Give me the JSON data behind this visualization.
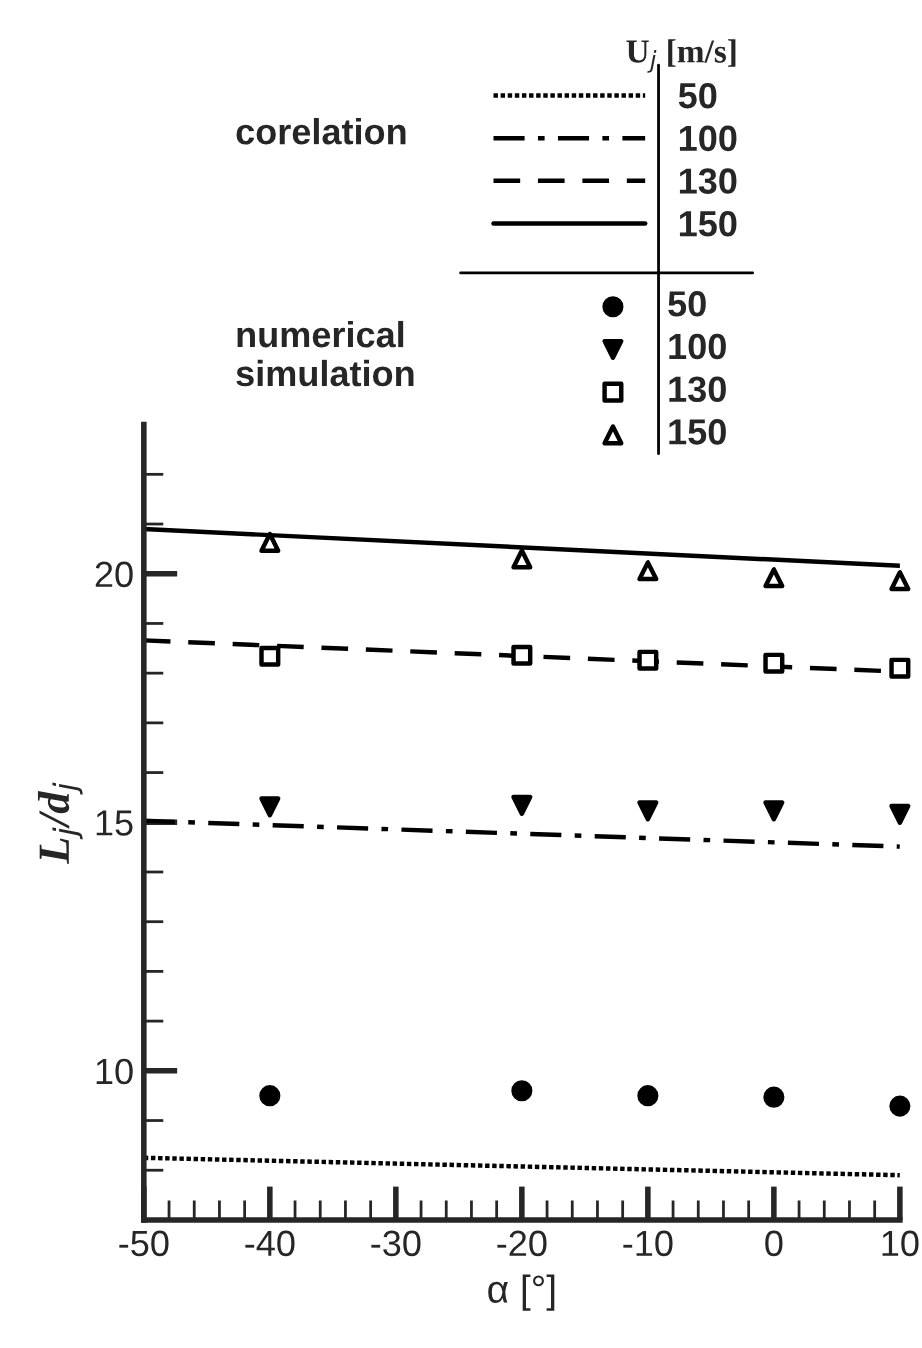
{
  "chart_data": {
    "type": "line",
    "xlabel": "α [°]",
    "ylabel": "L$_{j}$/d$_{j}$",
    "legend_title": "U$_{j}$ [m/s]",
    "annotations": [
      "corelation",
      "numerical\nsimulation"
    ],
    "series": [
      {
        "name": "50",
        "color": "#000000",
        "line_style": "dotted",
        "x": [
          -50,
          10
        ],
        "values": [
          8.25,
          7.9
        ]
      },
      {
        "name": "100",
        "color": "#000000",
        "line_style": "dashdot",
        "x": [
          -50,
          10
        ],
        "values": [
          15.03,
          14.51
        ]
      },
      {
        "name": "130",
        "color": "#000000",
        "line_style": "dashed",
        "x": [
          -50,
          10
        ],
        "values": [
          18.66,
          18.03
        ]
      },
      {
        "name": "150",
        "color": "#000000",
        "line_style": "solid",
        "x": [
          -50,
          10
        ],
        "values": [
          20.9,
          20.16
        ]
      },
      {
        "name": "50",
        "type": "scatter",
        "color": "#000000",
        "marker": "circle",
        "x": [
          -40,
          -20,
          -10,
          0,
          10
        ],
        "values": [
          9.5,
          9.6,
          9.5,
          9.47,
          9.29
        ]
      },
      {
        "name": "100",
        "type": "scatter",
        "color": "#000000",
        "marker": "triangle_down",
        "x": [
          -40,
          -20,
          -10,
          0,
          10
        ],
        "values": [
          15.31,
          15.34,
          15.23,
          15.23,
          15.16
        ]
      },
      {
        "name": "130",
        "type": "scatter",
        "color": "#000000",
        "marker": "square_open",
        "x": [
          -40,
          -20,
          -10,
          0,
          10
        ],
        "values": [
          18.34,
          18.36,
          18.26,
          18.2,
          18.1
        ]
      },
      {
        "name": "150",
        "type": "scatter",
        "color": "#000000",
        "marker": "triangle_open",
        "x": [
          -40,
          -20,
          -10,
          0,
          10
        ],
        "values": [
          20.63,
          20.3,
          20.06,
          19.92,
          19.86
        ]
      }
    ],
    "xlim": [
      -50,
      10
    ],
    "xticks": [
      -50,
      {
        "value": -48,
        "label": null
      },
      {
        "value": -46,
        "label": null
      },
      {
        "value": -44,
        "label": null
      },
      {
        "value": -42,
        "label": null
      },
      -40,
      {
        "value": -38,
        "label": null
      },
      {
        "value": -36,
        "label": null
      },
      {
        "value": -34,
        "label": null
      },
      {
        "value": -32,
        "label": null
      },
      -30,
      {
        "value": -28,
        "label": null
      },
      {
        "value": -26,
        "label": null
      },
      {
        "value": -24,
        "label": null
      },
      {
        "value": -22,
        "label": null
      },
      -20,
      {
        "value": -18,
        "label": null
      },
      {
        "value": -16,
        "label": null
      },
      {
        "value": -14,
        "label": null
      },
      {
        "value": -12,
        "label": null
      },
      -10,
      {
        "value": -8,
        "label": null
      },
      {
        "value": -6,
        "label": null
      },
      {
        "value": -4,
        "label": null
      },
      {
        "value": -2,
        "label": null
      },
      0,
      {
        "value": 2,
        "label": null
      },
      {
        "value": 4,
        "label": null
      },
      {
        "value": 6,
        "label": null
      },
      {
        "value": 8,
        "label": null
      },
      10
    ],
    "ylim": [
      7,
      23
    ],
    "yticks": [
      {
        "value": 8,
        "label": null
      },
      {
        "value": 9,
        "label": null
      },
      10,
      {
        "value": 11,
        "label": null
      },
      {
        "value": 12,
        "label": null
      },
      {
        "value": 13,
        "label": null
      },
      {
        "value": 14,
        "label": null
      },
      15,
      {
        "value": 16,
        "label": null
      },
      {
        "value": 17,
        "label": null
      },
      {
        "value": 18,
        "label": null
      },
      {
        "value": 19,
        "label": null
      },
      20,
      {
        "value": 21,
        "label": null
      },
      {
        "value": 22,
        "label": null
      }
    ],
    "grid": false,
    "legend": "top"
  }
}
